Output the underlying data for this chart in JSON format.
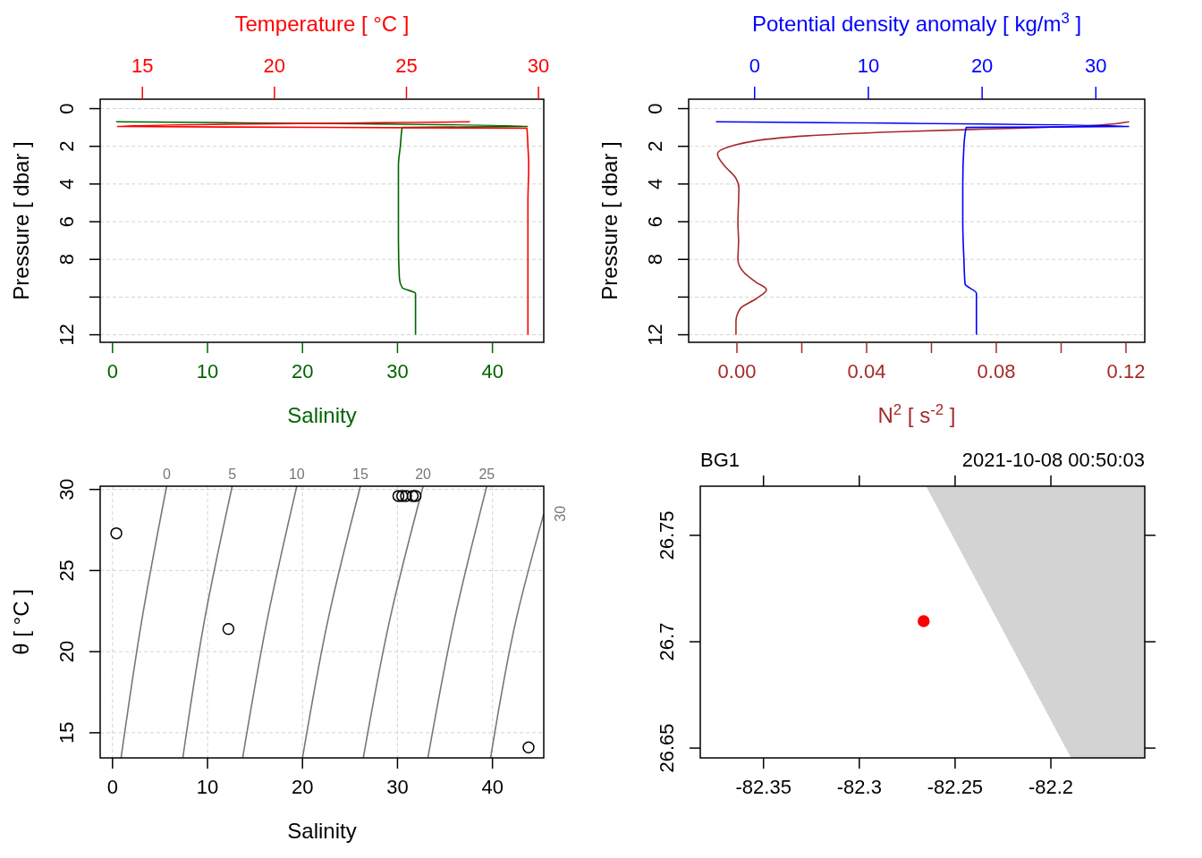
{
  "chart_data": [
    {
      "type": "line",
      "xlabel": "Salinity",
      "x2label": "Temperature [ °C ]",
      "ylabel": "Pressure [ dbar ]",
      "xlim": [
        -1.3,
        45.4
      ],
      "xticks": [
        0,
        10,
        20,
        30,
        40
      ],
      "x2lim": [
        13.4,
        30.2
      ],
      "x2ticks": [
        15,
        20,
        25,
        30
      ],
      "ylim": [
        12.4,
        -0.5
      ],
      "yticks": [
        0,
        2,
        4,
        6,
        8,
        {
          "value": 10,
          "label": null
        },
        12
      ],
      "grid": "y",
      "series": [
        {
          "color": "#006400",
          "x": [
            0.4,
            43.7,
            30.5,
            30.3,
            30.1,
            30.1,
            30.1,
            30.2,
            30.5,
            31.9,
            31.9
          ],
          "values": [
            0.7,
            0.95,
            1.0,
            2,
            3,
            5,
            7,
            9,
            9.5,
            9.8,
            12
          ]
        },
        {
          "color": "#ff0000",
          "axis": "x2",
          "x": [
            27.4,
            14.05,
            29.56,
            29.6,
            29.63,
            29.6,
            29.6,
            29.6,
            29.6
          ],
          "values": [
            0.7,
            0.95,
            1.04,
            2,
            3,
            5,
            7,
            9,
            12
          ]
        }
      ]
    },
    {
      "type": "line",
      "xlabel": "N$^{2}$ [ s$^{-2}$ ]",
      "x2label": "Potential density anomaly [ kg/m$^{3}$ ]",
      "ylabel": "Pressure [ dbar ]",
      "xlim": [
        -0.0149,
        0.1258
      ],
      "xticks": [
        {
          "value": 0,
          "label": "0.00"
        },
        {
          "value": 0.02,
          "label": null
        },
        {
          "value": 0.04,
          "label": "0.04"
        },
        {
          "value": 0.06,
          "label": null
        },
        {
          "value": 0.08,
          "label": "0.08"
        },
        {
          "value": 0.1,
          "label": null
        },
        {
          "value": 0.12,
          "label": "0.12"
        }
      ],
      "x2lim": [
        -5.8,
        34.3
      ],
      "x2ticks": [
        0,
        10,
        20,
        30
      ],
      "ylim": [
        12.4,
        -0.5
      ],
      "yticks": [
        0,
        2,
        4,
        6,
        8,
        {
          "value": 10,
          "label": null
        },
        12
      ],
      "grid": "y",
      "series": [
        {
          "color": "#a52a2a",
          "x": [
            0.121,
            0.104,
            0.076,
            0.049,
            0.021,
            -0.001,
            -0.006,
            -0.004,
            -0.0003,
            0.0006,
            0.0003,
            0.0005,
            0.0003,
            0.0022,
            0.0058,
            0.0091,
            0.0058,
            0.0011,
            -0.0003,
            -0.0003
          ],
          "values": [
            0.7,
            0.95,
            1.09,
            1.23,
            1.45,
            1.95,
            2.4,
            3.0,
            3.7,
            4.2,
            6.1,
            7.0,
            8.0,
            8.7,
            9.2,
            9.6,
            10.1,
            10.6,
            11.3,
            12
          ]
        },
        {
          "color": "#0000ff",
          "axis": "x2",
          "x": [
            -3.4,
            32.9,
            18.6,
            18.4,
            18.3,
            18.3,
            18.4,
            18.5,
            19.5,
            19.5
          ],
          "values": [
            0.7,
            0.95,
            1.0,
            2,
            4,
            6,
            8,
            9.3,
            9.8,
            12
          ]
        }
      ]
    },
    {
      "type": "scatter",
      "xlabel": "Salinity",
      "ylabel": "θ [ °C ]",
      "xlim": [
        -1.3,
        45.4
      ],
      "xticks": [
        0,
        10,
        20,
        30,
        40
      ],
      "ylim": [
        13.45,
        30.2
      ],
      "yticks": [
        15,
        20,
        25,
        30
      ],
      "grid": true,
      "series": [
        {
          "type": "line",
          "name": "0",
          "color": "#777777",
          "x": [
            0.9,
            3.1,
            5.7
          ],
          "values": [
            13.45,
            22,
            30.2
          ]
        },
        {
          "type": "line",
          "name": "5",
          "color": "#777777",
          "x": [
            7.4,
            9.7,
            12.6
          ],
          "values": [
            13.45,
            22,
            30.2
          ]
        },
        {
          "type": "line",
          "name": "10",
          "color": "#777777",
          "x": [
            13.7,
            16.3,
            19.4
          ],
          "values": [
            13.45,
            22,
            30.2
          ]
        },
        {
          "type": "line",
          "name": "15",
          "color": "#777777",
          "x": [
            20.0,
            22.7,
            26.1
          ],
          "values": [
            13.45,
            22,
            30.2
          ]
        },
        {
          "type": "line",
          "name": "20",
          "color": "#777777",
          "x": [
            26.4,
            29.2,
            32.7
          ],
          "values": [
            13.45,
            22,
            30.2
          ]
        },
        {
          "type": "line",
          "name": "25",
          "color": "#777777",
          "x": [
            33.2,
            36.0,
            39.4
          ],
          "values": [
            13.45,
            22,
            30.2
          ]
        },
        {
          "type": "line",
          "name": "30",
          "color": "#777777",
          "x": [
            39.8,
            42.5,
            45.4
          ],
          "values": [
            13.45,
            22,
            28.5
          ]
        },
        {
          "color": "#000000",
          "marker": "circle",
          "x": [
            0.4,
            12.2,
            43.8,
            30.1,
            30.5,
            30.9,
            31.6,
            31.9
          ],
          "values": [
            27.3,
            21.4,
            14.1,
            29.6,
            29.6,
            29.6,
            29.6,
            29.6
          ]
        }
      ]
    },
    {
      "type": "scatter",
      "title": "BG1",
      "annotations": [
        "2021-10-08 00:50:03"
      ],
      "xlim": [
        -82.383,
        -82.151
      ],
      "xticks": [
        -82.35,
        -82.3,
        -82.25,
        -82.2
      ],
      "ylim": [
        26.6454,
        26.7731
      ],
      "yticks": [
        26.65,
        26.7,
        26.75
      ],
      "series": [
        {
          "color": "#ff0000",
          "marker": "circle",
          "x": [
            -82.2664
          ],
          "values": [
            26.7097
          ]
        }
      ]
    }
  ]
}
